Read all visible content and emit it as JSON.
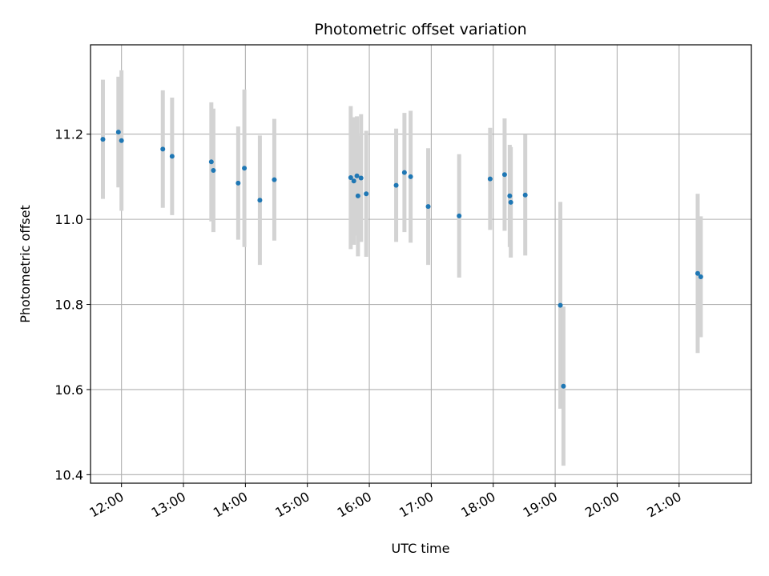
{
  "chart_data": {
    "type": "scatter",
    "title": "Photometric offset variation",
    "xlabel": "UTC time",
    "ylabel": "Photometric offset",
    "x_unit": "hours UTC",
    "xlim": [
      "11:30",
      "22:10"
    ],
    "ylim": [
      10.38,
      11.41
    ],
    "x_ticks": [
      "12:00",
      "13:00",
      "14:00",
      "15:00",
      "16:00",
      "17:00",
      "18:00",
      "19:00",
      "20:00",
      "21:00"
    ],
    "y_ticks": [
      "10.4",
      "10.6",
      "10.8",
      "11.0",
      "11.2"
    ],
    "grid": true,
    "colors": {
      "point": "#1f77b4",
      "errorbar": "#d3d3d3",
      "grid": "#b0b0b0"
    },
    "points": [
      {
        "x": "11:42",
        "y": 11.188,
        "err": 0.14
      },
      {
        "x": "11:57",
        "y": 11.205,
        "err": 0.13
      },
      {
        "x": "12:00",
        "y": 11.185,
        "err": 0.165
      },
      {
        "x": "12:40",
        "y": 11.165,
        "err": 0.138
      },
      {
        "x": "12:49",
        "y": 11.148,
        "err": 0.138
      },
      {
        "x": "13:27",
        "y": 11.135,
        "err": 0.14
      },
      {
        "x": "13:29",
        "y": 11.115,
        "err": 0.145
      },
      {
        "x": "13:53",
        "y": 11.085,
        "err": 0.133
      },
      {
        "x": "13:59",
        "y": 11.12,
        "err": 0.185
      },
      {
        "x": "14:14",
        "y": 11.045,
        "err": 0.152
      },
      {
        "x": "14:28",
        "y": 11.093,
        "err": 0.143
      },
      {
        "x": "15:42",
        "y": 11.098,
        "err": 0.168
      },
      {
        "x": "15:45",
        "y": 11.09,
        "err": 0.15
      },
      {
        "x": "15:48",
        "y": 11.102,
        "err": 0.14
      },
      {
        "x": "15:49",
        "y": 11.055,
        "err": 0.142
      },
      {
        "x": "15:52",
        "y": 11.097,
        "err": 0.15
      },
      {
        "x": "15:57",
        "y": 11.06,
        "err": 0.148
      },
      {
        "x": "16:26",
        "y": 11.08,
        "err": 0.133
      },
      {
        "x": "16:34",
        "y": 11.11,
        "err": 0.14
      },
      {
        "x": "16:40",
        "y": 11.1,
        "err": 0.155
      },
      {
        "x": "16:57",
        "y": 11.03,
        "err": 0.137
      },
      {
        "x": "17:27",
        "y": 11.008,
        "err": 0.145
      },
      {
        "x": "17:57",
        "y": 11.095,
        "err": 0.12
      },
      {
        "x": "18:11",
        "y": 11.105,
        "err": 0.132
      },
      {
        "x": "18:16",
        "y": 11.055,
        "err": 0.12
      },
      {
        "x": "18:17",
        "y": 11.04,
        "err": 0.13
      },
      {
        "x": "18:31",
        "y": 11.057,
        "err": 0.142
      },
      {
        "x": "19:05",
        "y": 10.798,
        "err": 0.243
      },
      {
        "x": "19:08",
        "y": 10.608,
        "err": 0.187
      },
      {
        "x": "21:18",
        "y": 10.873,
        "err": 0.187
      },
      {
        "x": "21:21",
        "y": 10.865,
        "err": 0.142
      }
    ]
  }
}
